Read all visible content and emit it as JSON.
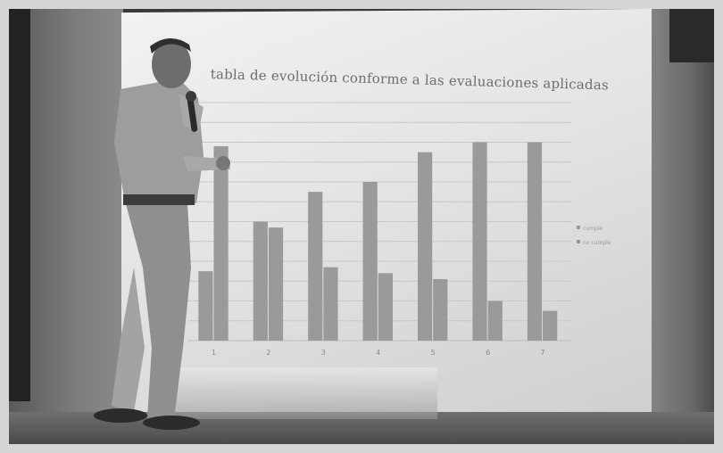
{
  "slide": {
    "title": "tabla de evolución conforme a las evaluaciones aplicadas"
  },
  "chart_data": {
    "type": "bar",
    "title": "tabla de evolución conforme a las evaluaciones aplicadas",
    "categories": [
      "1",
      "2",
      "3",
      "4",
      "5",
      "6",
      "7"
    ],
    "series": [
      {
        "name": "cumple",
        "values": [
          35,
          60,
          75,
          80,
          95,
          100,
          100
        ]
      },
      {
        "name": "no cumple",
        "values": [
          98,
          57,
          37,
          34,
          31,
          20,
          15
        ]
      }
    ],
    "ylim": [
      0,
      120
    ],
    "grid": true,
    "legend": "right"
  },
  "colors": {
    "bar": "#9a9a9a",
    "grid": "#c8c8c8",
    "screen": "#ececec"
  }
}
